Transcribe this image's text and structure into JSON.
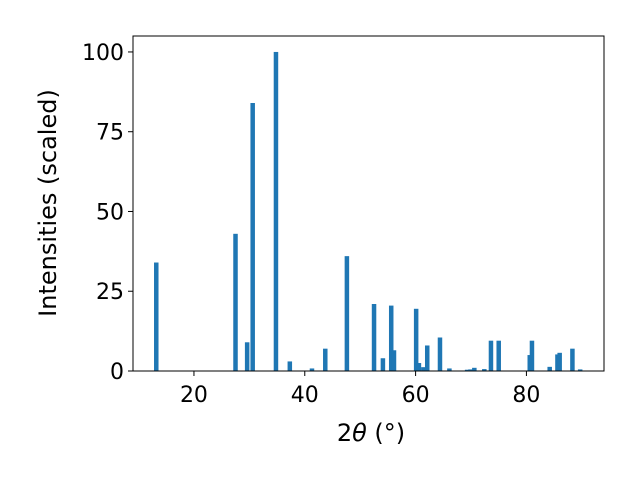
{
  "chart_data": {
    "type": "bar",
    "title": "",
    "xlabel_main": "2",
    "xlabel_theta": "θ",
    "xlabel_unit": " (°)",
    "ylabel": "Intensities (scaled)",
    "xlim": [
      9,
      94
    ],
    "ylim": [
      0,
      105
    ],
    "xticks": [
      20,
      40,
      60,
      80
    ],
    "yticks": [
      0,
      25,
      50,
      75,
      100
    ],
    "grid": false,
    "bar_color": "#1f77b4",
    "x": [
      13.2,
      27.5,
      29.6,
      30.6,
      34.8,
      37.3,
      41.3,
      43.7,
      47.6,
      52.5,
      54.1,
      55.6,
      56.1,
      60.1,
      60.6,
      61.4,
      62.1,
      64.4,
      66.1,
      69.3,
      69.9,
      70.6,
      72.4,
      73.6,
      75.0,
      80.6,
      81.0,
      84.2,
      85.6,
      86.0,
      88.3,
      89.7
    ],
    "values": [
      34,
      43,
      9,
      84,
      100,
      3,
      0.8,
      7,
      36,
      21,
      4,
      20.5,
      6.5,
      19.5,
      2.5,
      1.2,
      8,
      10.5,
      0.8,
      0.4,
      0.5,
      1,
      0.6,
      9.5,
      9.5,
      5,
      9.5,
      1.3,
      5.2,
      5.7,
      7,
      0.5
    ]
  }
}
